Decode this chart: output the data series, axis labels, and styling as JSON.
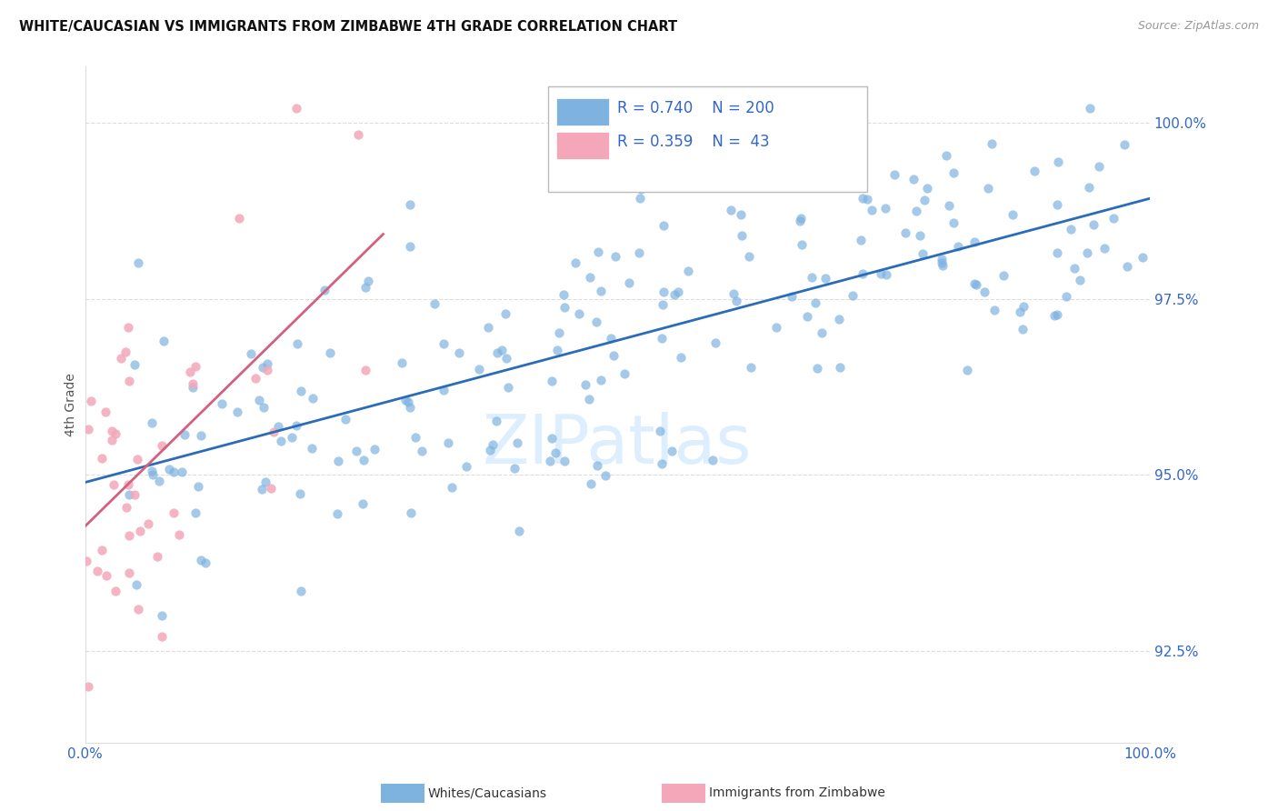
{
  "title": "WHITE/CAUCASIAN VS IMMIGRANTS FROM ZIMBABWE 4TH GRADE CORRELATION CHART",
  "source": "Source: ZipAtlas.com",
  "ylabel": "4th Grade",
  "ytick_labels": [
    "92.5%",
    "95.0%",
    "97.5%",
    "100.0%"
  ],
  "ytick_values": [
    0.925,
    0.95,
    0.975,
    1.0
  ],
  "xmin": 0.0,
  "xmax": 1.0,
  "ymin": 0.912,
  "ymax": 1.008,
  "legend_blue_R": "0.740",
  "legend_blue_N": "200",
  "legend_pink_R": "0.359",
  "legend_pink_N": " 43",
  "blue_color": "#7EB3E0",
  "pink_color": "#F4A7B9",
  "trendline_blue_color": "#2B6CB8",
  "trendline_pink_color": "#D46080",
  "title_color": "#111111",
  "source_color": "#999999",
  "axis_label_color": "#3366CC",
  "tick_color": "#3366CC",
  "watermark_color": "#DCEEFF",
  "grid_color": "#DDDDDD"
}
